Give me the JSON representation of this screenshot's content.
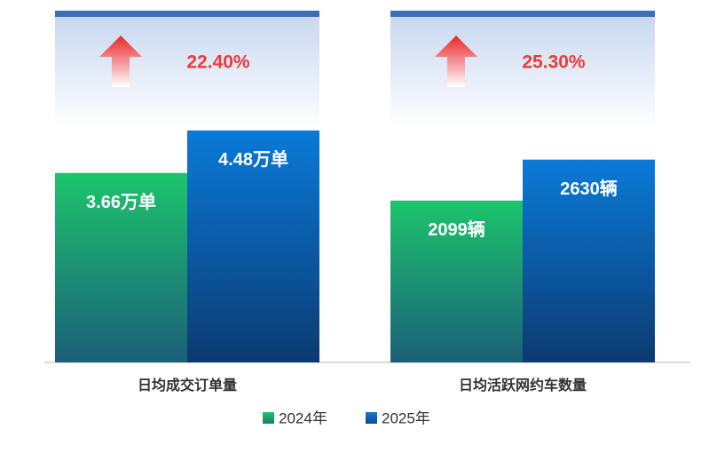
{
  "chart_data": [
    {
      "type": "bar",
      "annotation": "22.40%",
      "xlabel": "日均成交订单量",
      "ylim": [
        0,
        7
      ],
      "series": [
        {
          "name": "2024年",
          "color": "#18b86a",
          "values": [
            3.66
          ],
          "value_labels": [
            "3.66万单"
          ]
        },
        {
          "name": "2025年",
          "color": "#0a72cf",
          "values": [
            4.48
          ],
          "value_labels": [
            "4.48万单"
          ]
        }
      ]
    },
    {
      "type": "bar",
      "annotation": "25.30%",
      "xlabel": "日均活跃网约车数量",
      "ylim": [
        0,
        4700
      ],
      "series": [
        {
          "name": "2024年",
          "color": "#18b86a",
          "values": [
            2099
          ],
          "value_labels": [
            "2099辆"
          ]
        },
        {
          "name": "2025年",
          "color": "#0a72cf",
          "values": [
            2630
          ],
          "value_labels": [
            "2630辆"
          ]
        }
      ]
    }
  ]
}
